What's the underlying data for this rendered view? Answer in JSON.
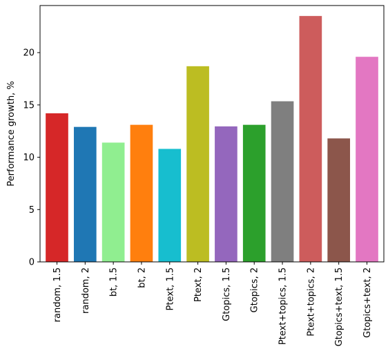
{
  "chart_data": {
    "type": "bar",
    "title": "",
    "xlabel": "",
    "ylabel": "Performance growth, %",
    "ylim": [
      0,
      24.5
    ],
    "yticks": [
      0,
      5,
      10,
      15,
      20
    ],
    "grid": false,
    "categories": [
      "random, 1.5",
      "random, 2",
      "bt, 1.5",
      "bt, 2",
      "Ptext, 1.5",
      "Ptext, 2",
      "Gtopics, 1.5",
      "Gtopics, 2",
      "Ptext+topics, 1.5",
      "Ptext+topics, 2",
      "Gtopics+text, 1.5",
      "Gtopics+text, 2"
    ],
    "values": [
      14.2,
      12.9,
      11.4,
      13.1,
      10.8,
      18.7,
      12.95,
      13.1,
      15.35,
      23.5,
      11.8,
      19.6
    ],
    "colors": [
      "#d62728",
      "#1f77b4",
      "#90ee90",
      "#ff7f0e",
      "#17becf",
      "#bcbd22",
      "#9467bd",
      "#2ca02c",
      "#7f7f7f",
      "#cd5c5c",
      "#8c564b",
      "#e377c2"
    ]
  }
}
